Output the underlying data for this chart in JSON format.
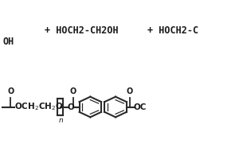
{
  "bg_color": "#ffffff",
  "line_color": "#2a2a2a",
  "text_color": "#1a1a1a",
  "top_text1": "+ HOCH2-CH2OH",
  "top_text2": "+ HOCH2-C",
  "top_left_oh": "OH",
  "font_size_top": 8.5,
  "font_size_struct": 7.5,
  "sy": 65
}
